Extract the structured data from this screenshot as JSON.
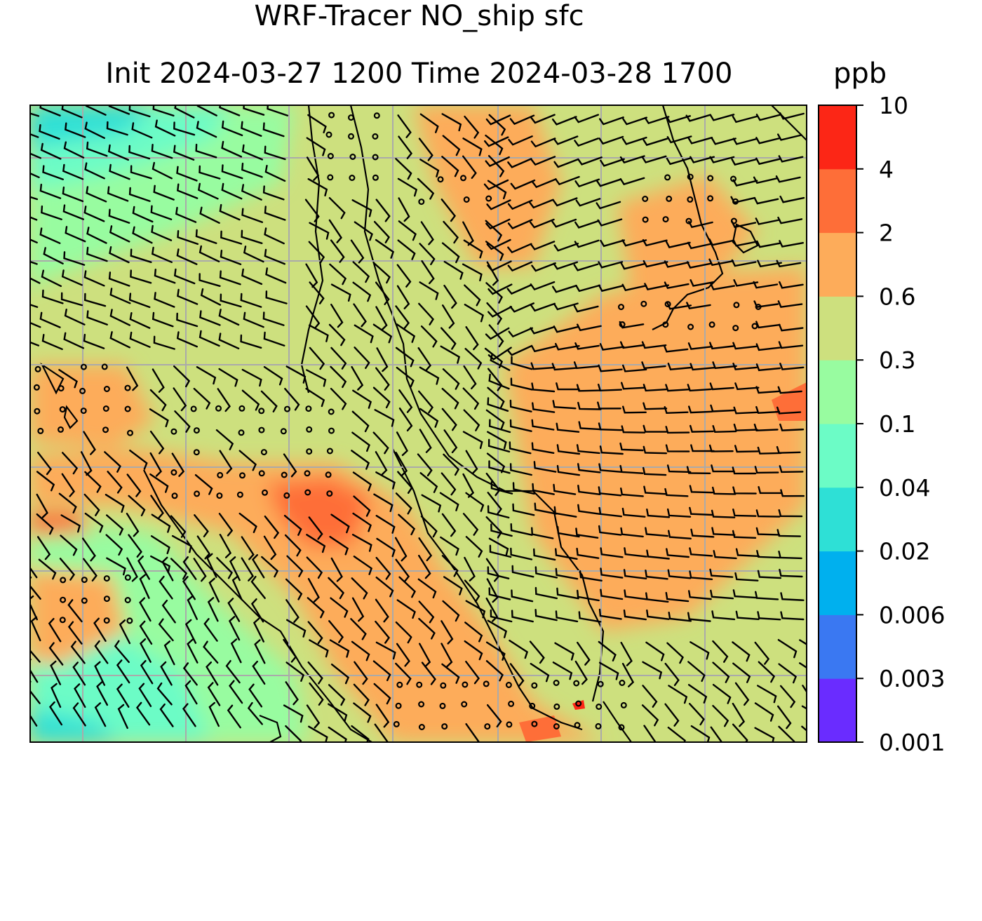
{
  "title": {
    "line1": "WRF-Tracer NO_ship sfc",
    "line2": "Init 2024-03-27 1200 Time 2024-03-28 1700",
    "units": "ppb"
  },
  "colorbar": {
    "levels": [
      "0.001",
      "0.003",
      "0.006",
      "0.02",
      "0.04",
      "0.1",
      "0.3",
      "0.6",
      "2",
      "4",
      "10"
    ],
    "colors": [
      "#6a2cff",
      "#3a78f2",
      "#00b0ee",
      "#2ee0d6",
      "#6cfcc6",
      "#98fca0",
      "#cde07e",
      "#fdac5a",
      "#fe6e38",
      "#fc2616"
    ]
  },
  "map": {
    "grid_lines": 7,
    "description_colors": {
      "coast": "#000000",
      "grid": "#aaaaaa",
      "barb": "#000000"
    }
  }
}
